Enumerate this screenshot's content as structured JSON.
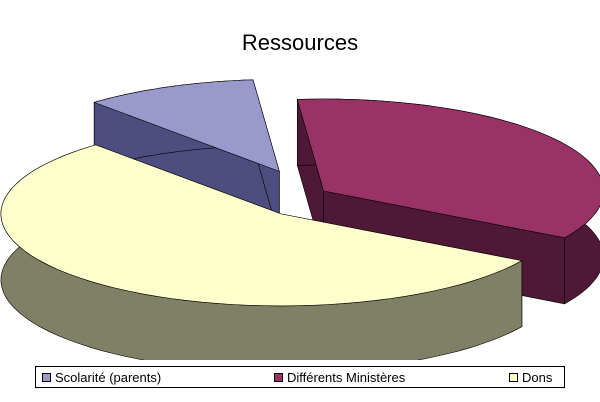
{
  "chart_data": {
    "type": "pie",
    "title": "Ressources",
    "categories": [
      "Scolarité (parents)",
      "Différents Ministères",
      "Dons"
    ],
    "values": [
      10,
      35,
      55
    ],
    "colors": [
      "#9999CC",
      "#993366",
      "#FFFFCC"
    ],
    "side_colors": [
      "#4D4D80",
      "#4F1836",
      "#808066"
    ],
    "legend_position": "bottom",
    "exploded": true,
    "three_d": true
  }
}
